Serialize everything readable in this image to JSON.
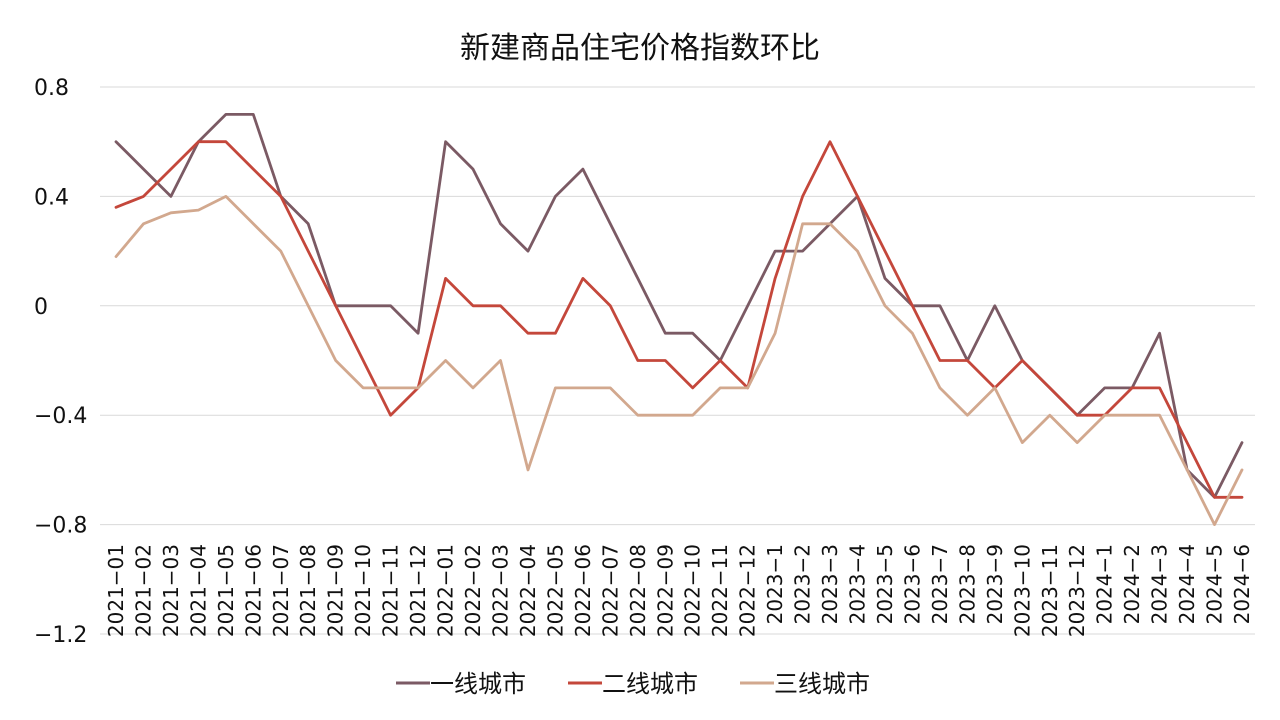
{
  "chart_data": {
    "type": "line",
    "title": "新建商品住宅价格指数环比",
    "xlabel": "",
    "ylabel": "",
    "ylim": [
      -1.2,
      0.8
    ],
    "y_ticks": [
      0.8,
      0.4,
      0,
      -0.4,
      -0.8,
      -1.2
    ],
    "y_tick_labels": [
      "0.8",
      "0.4",
      "0",
      "−0.4",
      "−0.8",
      "−1.2"
    ],
    "grid": true,
    "legend_position": "bottom",
    "categories": [
      "2021−01",
      "2021−02",
      "2021−03",
      "2021−04",
      "2021−05",
      "2021−06",
      "2021−07",
      "2021−08",
      "2021−09",
      "2021−10",
      "2021−11",
      "2021−12",
      "2022−01",
      "2022−02",
      "2022−03",
      "2022−04",
      "2022−05",
      "2022−06",
      "2022−07",
      "2022−08",
      "2022−09",
      "2022−10",
      "2022−11",
      "2022−12",
      "2023−1",
      "2023−2",
      "2023−3",
      "2023−4",
      "2023−5",
      "2023−6",
      "2023−7",
      "2023−8",
      "2023−9",
      "2023−10",
      "2023−11",
      "2023−12",
      "2024−1",
      "2024−2",
      "2024−3",
      "2024−4",
      "2024−5",
      "2024−6"
    ],
    "series": [
      {
        "name": "一线城市",
        "color": "#7b5a64",
        "values": [
          0.6,
          0.5,
          0.4,
          0.6,
          0.7,
          0.7,
          0.4,
          0.3,
          0,
          0,
          0,
          -0.1,
          0.6,
          0.5,
          0.3,
          0.2,
          0.4,
          0.5,
          0.3,
          0.1,
          -0.1,
          -0.1,
          -0.2,
          0,
          0.2,
          0.2,
          0.3,
          0.4,
          0.1,
          0,
          0,
          -0.2,
          0,
          -0.2,
          -0.3,
          -0.4,
          -0.3,
          -0.3,
          -0.1,
          -0.6,
          -0.7,
          -0.5
        ]
      },
      {
        "name": "二线城市",
        "color": "#c4473b",
        "values": [
          0.36,
          0.4,
          0.5,
          0.6,
          0.6,
          0.5,
          0.4,
          0.2,
          0,
          -0.2,
          -0.4,
          -0.3,
          0.1,
          0,
          0,
          -0.1,
          -0.1,
          0.1,
          0,
          -0.2,
          -0.2,
          -0.3,
          -0.2,
          -0.3,
          0.1,
          0.4,
          0.6,
          0.4,
          0.2,
          0,
          -0.2,
          -0.2,
          -0.3,
          -0.2,
          -0.3,
          -0.4,
          -0.4,
          -0.3,
          -0.3,
          -0.5,
          -0.7,
          -0.7
        ]
      },
      {
        "name": "三线城市",
        "color": "#d2a88e",
        "values": [
          0.18,
          0.3,
          0.34,
          0.35,
          0.4,
          0.3,
          0.2,
          0,
          -0.2,
          -0.3,
          -0.3,
          -0.3,
          -0.2,
          -0.3,
          -0.2,
          -0.6,
          -0.3,
          -0.3,
          -0.3,
          -0.4,
          -0.4,
          -0.4,
          -0.3,
          -0.3,
          -0.1,
          0.3,
          0.3,
          0.2,
          0,
          -0.1,
          -0.3,
          -0.4,
          -0.3,
          -0.5,
          -0.4,
          -0.5,
          -0.4,
          -0.4,
          -0.4,
          -0.6,
          -0.8,
          -0.6
        ]
      }
    ]
  }
}
